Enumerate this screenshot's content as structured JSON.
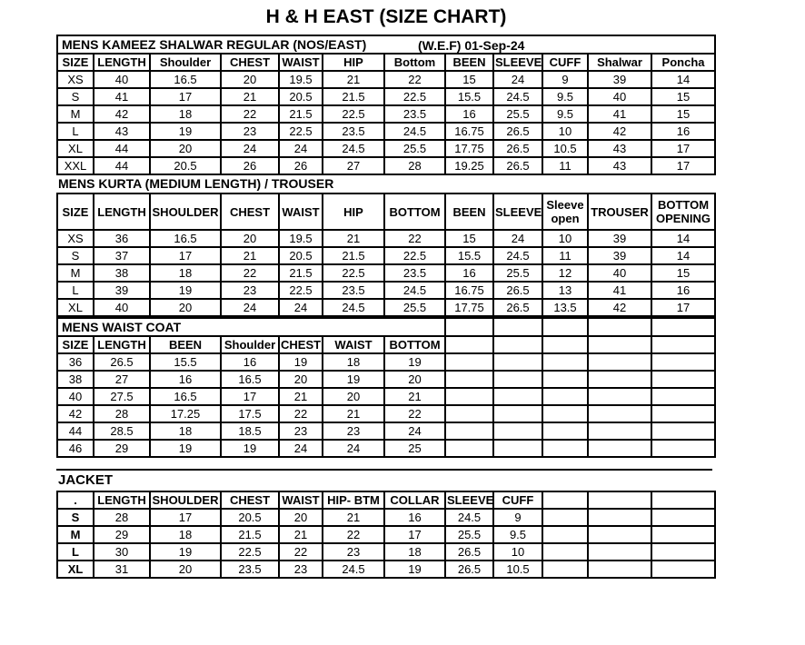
{
  "title": "H & H EAST (SIZE CHART)",
  "colors": {
    "text": "#000000",
    "background": "#ffffff",
    "border": "#000000"
  },
  "tables": {
    "kameez": {
      "section_left": "MENS KAMEEZ SHALWAR REGULAR (NOS/EAST)",
      "section_right": "(W.E.F) 01-Sep-24",
      "headers": [
        "SIZE",
        "LENGTH",
        "Shoulder",
        "CHEST",
        "WAIST",
        "HIP",
        "Bottom",
        "BEEN",
        "SLEEVE",
        "CUFF",
        "Shalwar",
        "Poncha"
      ],
      "rows": [
        [
          "XS",
          "40",
          "16.5",
          "20",
          "19.5",
          "21",
          "22",
          "15",
          "24",
          "9",
          "39",
          "14"
        ],
        [
          "S",
          "41",
          "17",
          "21",
          "20.5",
          "21.5",
          "22.5",
          "15.5",
          "24.5",
          "9.5",
          "40",
          "15"
        ],
        [
          "M",
          "42",
          "18",
          "22",
          "21.5",
          "22.5",
          "23.5",
          "16",
          "25.5",
          "9.5",
          "41",
          "15"
        ],
        [
          "L",
          "43",
          "19",
          "23",
          "22.5",
          "23.5",
          "24.5",
          "16.75",
          "26.5",
          "10",
          "42",
          "16"
        ],
        [
          "XL",
          "44",
          "20",
          "24",
          "24",
          "24.5",
          "25.5",
          "17.75",
          "26.5",
          "10.5",
          "43",
          "17"
        ],
        [
          "XXL",
          "44",
          "20.5",
          "26",
          "26",
          "27",
          "28",
          "19.25",
          "26.5",
          "11",
          "43",
          "17"
        ]
      ]
    },
    "kurta": {
      "section": "MENS KURTA (MEDIUM LENGTH) / TROUSER",
      "headers": [
        "SIZE",
        "LENGTH",
        "SHOULDER",
        "CHEST",
        "WAIST",
        "HIP",
        "BOTTOM",
        "BEEN",
        "SLEEVE",
        "Sleeve open",
        "TROUSER",
        "BOTTOM OPENING"
      ],
      "rows": [
        [
          "XS",
          "36",
          "16.5",
          "20",
          "19.5",
          "21",
          "22",
          "15",
          "24",
          "10",
          "39",
          "14"
        ],
        [
          "S",
          "37",
          "17",
          "21",
          "20.5",
          "21.5",
          "22.5",
          "15.5",
          "24.5",
          "11",
          "39",
          "14"
        ],
        [
          "M",
          "38",
          "18",
          "22",
          "21.5",
          "22.5",
          "23.5",
          "16",
          "25.5",
          "12",
          "40",
          "15"
        ],
        [
          "L",
          "39",
          "19",
          "23",
          "22.5",
          "23.5",
          "24.5",
          "16.75",
          "26.5",
          "13",
          "41",
          "16"
        ],
        [
          "XL",
          "40",
          "20",
          "24",
          "24",
          "24.5",
          "25.5",
          "17.75",
          "26.5",
          "13.5",
          "42",
          "17"
        ]
      ]
    },
    "waistcoat": {
      "section": "MENS WAIST COAT",
      "headers": [
        "SIZE",
        "LENGTH",
        "BEEN",
        "Shoulder",
        "CHEST",
        "WAIST",
        "BOTTOM",
        "",
        "",
        "",
        "",
        ""
      ],
      "rows": [
        [
          "36",
          "26.5",
          "15.5",
          "16",
          "19",
          "18",
          "19",
          "",
          "",
          "",
          "",
          ""
        ],
        [
          "38",
          "27",
          "16",
          "16.5",
          "20",
          "19",
          "20",
          "",
          "",
          "",
          "",
          ""
        ],
        [
          "40",
          "27.5",
          "16.5",
          "17",
          "21",
          "20",
          "21",
          "",
          "",
          "",
          "",
          ""
        ],
        [
          "42",
          "28",
          "17.25",
          "17.5",
          "22",
          "21",
          "22",
          "",
          "",
          "",
          "",
          ""
        ],
        [
          "44",
          "28.5",
          "18",
          "18.5",
          "23",
          "23",
          "24",
          "",
          "",
          "",
          "",
          ""
        ],
        [
          "46",
          "29",
          "19",
          "19",
          "24",
          "24",
          "25",
          "",
          "",
          "",
          "",
          ""
        ]
      ]
    },
    "jacket": {
      "section": "JACKET",
      "headers": [
        ".",
        "LENGTH",
        "SHOULDER",
        "CHEST",
        "WAIST",
        "HIP- BTM",
        "COLLAR",
        "SLEEVE",
        "CUFF",
        "",
        "",
        ""
      ],
      "rows": [
        [
          "S",
          "28",
          "17",
          "20.5",
          "20",
          "21",
          "16",
          "24.5",
          "9",
          "",
          "",
          ""
        ],
        [
          "M",
          "29",
          "18",
          "21.5",
          "21",
          "22",
          "17",
          "25.5",
          "9.5",
          "",
          "",
          ""
        ],
        [
          "L",
          "30",
          "19",
          "22.5",
          "22",
          "23",
          "18",
          "26.5",
          "10",
          "",
          "",
          ""
        ],
        [
          "XL",
          "31",
          "20",
          "23.5",
          "23",
          "24.5",
          "19",
          "26.5",
          "10.5",
          "",
          "",
          ""
        ]
      ]
    }
  }
}
